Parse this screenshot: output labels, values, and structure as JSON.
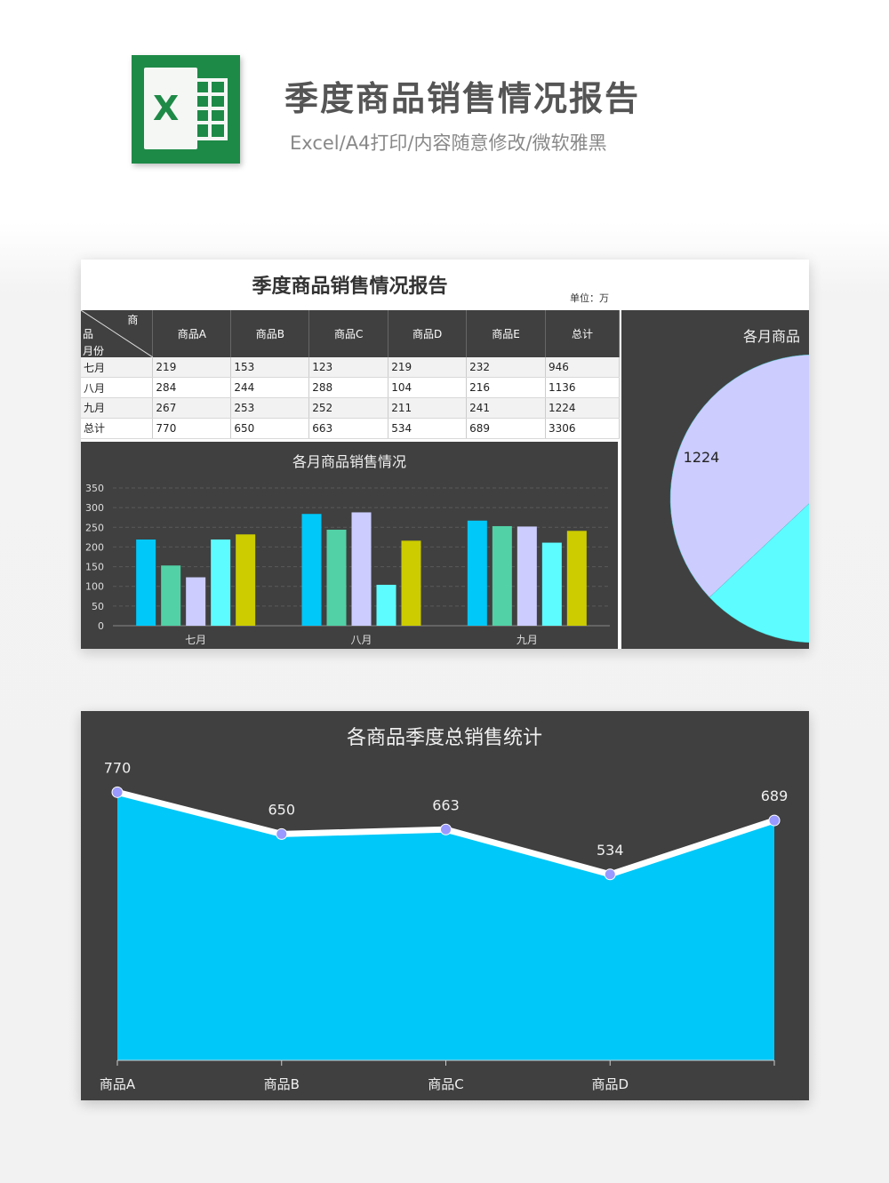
{
  "header": {
    "title": "季度商品销售情况报告",
    "subtitle": "Excel/A4打印/内容随意修改/微软雅黑",
    "logo_letter": "X"
  },
  "report": {
    "title": "季度商品销售情况报告",
    "unit": "单位：万",
    "corner": {
      "top": "商",
      "mid": "品",
      "bottom": "月份"
    },
    "columns": [
      "商品A",
      "商品B",
      "商品C",
      "商品D",
      "商品E",
      "总计"
    ],
    "rows": [
      {
        "label": "七月",
        "values": [
          "219",
          "153",
          "123",
          "219",
          "232",
          "946"
        ]
      },
      {
        "label": "八月",
        "values": [
          "284",
          "244",
          "288",
          "104",
          "216",
          "1136"
        ]
      },
      {
        "label": "九月",
        "values": [
          "267",
          "253",
          "252",
          "211",
          "241",
          "1224"
        ]
      },
      {
        "label": "总计",
        "values": [
          "770",
          "650",
          "663",
          "534",
          "689",
          "3306"
        ]
      }
    ]
  },
  "colors": {
    "panel_bg": "#404040",
    "series": [
      "#00c8f8",
      "#52d1a6",
      "#ccccff",
      "#5dfcff",
      "#cccc00"
    ],
    "area": "#00c8f8",
    "marker": "#9999ff",
    "brand": "#1e8a47"
  },
  "chart_data": [
    {
      "type": "bar",
      "title": "各月商品销售情况",
      "categories": [
        "七月",
        "八月",
        "九月"
      ],
      "series": [
        {
          "values": [
            219,
            284,
            267
          ]
        },
        {
          "values": [
            153,
            244,
            253
          ]
        },
        {
          "values": [
            123,
            288,
            252
          ]
        },
        {
          "values": [
            219,
            104,
            211
          ]
        },
        {
          "values": [
            232,
            216,
            241
          ]
        }
      ],
      "yticks": [
        "0",
        "50",
        "100",
        "150",
        "200",
        "250",
        "300",
        "350"
      ],
      "ylim": [
        0,
        350
      ],
      "grid": true
    },
    {
      "type": "pie",
      "title": "各月商品",
      "values": [
        946,
        1136,
        1224
      ],
      "visible_label": "1224"
    },
    {
      "type": "area",
      "title": "各商品季度总销售统计",
      "categories": [
        "商品A",
        "商品B",
        "商品C",
        "商品D",
        "商品E"
      ],
      "visible_categories": [
        "商品A",
        "商品B",
        "商品C",
        "商品D"
      ],
      "values": [
        770,
        650,
        663,
        534,
        689
      ],
      "labels": [
        "770",
        "650",
        "663",
        "534",
        "689"
      ],
      "ylim": [
        0,
        850
      ]
    }
  ]
}
